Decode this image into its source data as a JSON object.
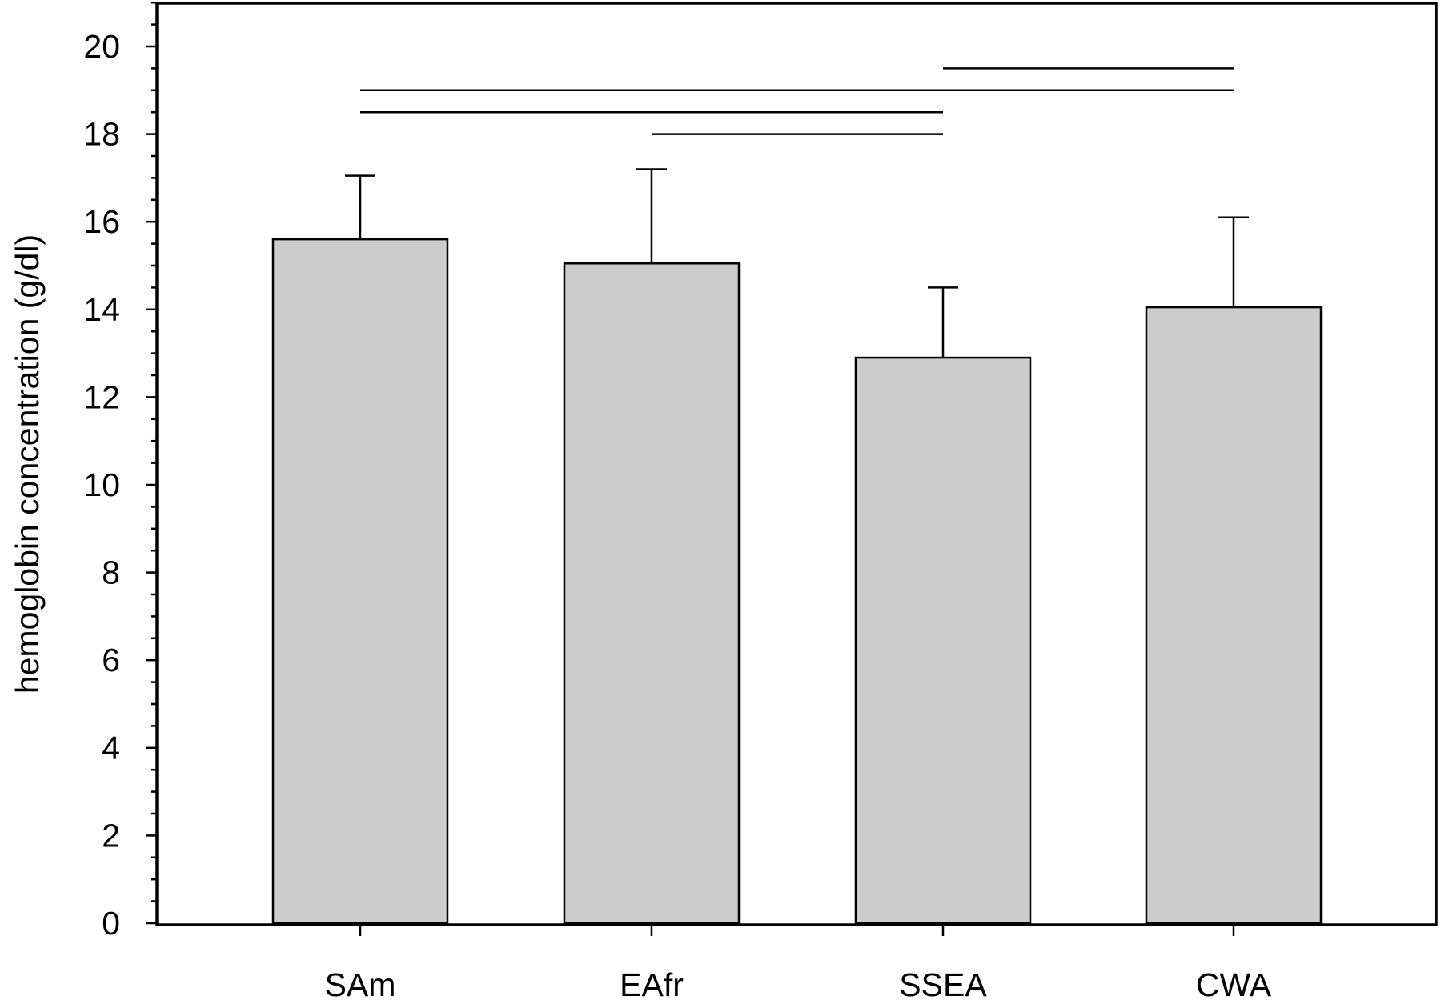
{
  "chart_data": {
    "type": "bar",
    "title": "",
    "xlabel": "",
    "ylabel": "hemoglobin concentration (g/dl)",
    "categories": [
      "SAm",
      "EAfr",
      "SSEA",
      "CWA"
    ],
    "values": [
      15.6,
      15.05,
      12.9,
      14.05
    ],
    "error_upper": [
      17.05,
      17.2,
      14.5,
      16.1
    ],
    "ylim": [
      0,
      21
    ],
    "yticks": [
      0,
      2,
      4,
      6,
      8,
      10,
      12,
      14,
      16,
      18,
      20
    ],
    "ytick_labels": [
      "0",
      "2",
      "4",
      "6",
      "8",
      "10",
      "12",
      "14",
      "16",
      "18",
      "20"
    ],
    "significance_lines": [
      {
        "from": "SSEA",
        "to": "CWA",
        "y": 19.5
      },
      {
        "from": "SAm",
        "to": "CWA",
        "y": 19.0
      },
      {
        "from": "SAm",
        "to": "SSEA",
        "y": 18.5
      },
      {
        "from": "EAfr",
        "to": "SSEA",
        "y": 18.0
      }
    ],
    "grid": false,
    "bar_color": "#cccccc"
  }
}
